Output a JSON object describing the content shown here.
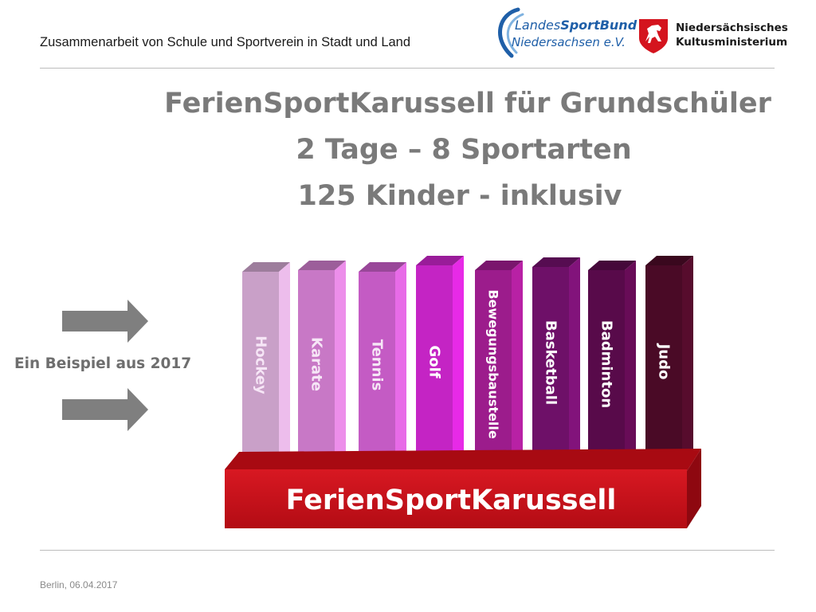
{
  "header": {
    "text": "Zusammenarbeit von Schule und Sportverein in Stadt und Land",
    "lsb_logo": {
      "word1": "Landes",
      "word2": "SportBund",
      "line2": "Niedersachsen e.V."
    },
    "ministry_logo": {
      "line1": "Niedersächsisches",
      "line2": "Kultusministerium"
    }
  },
  "title": {
    "line1": "FerienSportKarussell für Grundschüler",
    "line2": "2 Tage – 8 Sportarten",
    "line3": "125 Kinder - inklusiv"
  },
  "side_label": "Ein Beispiel aus 2017",
  "graphic": {
    "base_label": "FerienSportKarussell",
    "sports": [
      {
        "name": "Hockey",
        "color": "#c9a0c8"
      },
      {
        "name": "Karate",
        "color": "#c878c6"
      },
      {
        "name": "Tennis",
        "color": "#c45bc4"
      },
      {
        "name": "Golf",
        "color": "#c424c4"
      },
      {
        "name": "Bewegungsbaustelle",
        "color": "#9c1c8c"
      },
      {
        "name": "Basketball",
        "color": "#6e1068"
      },
      {
        "name": "Badminton",
        "color": "#580a4a"
      },
      {
        "name": "Judo",
        "color": "#4a0a26"
      }
    ],
    "base_color": "#c8101a"
  },
  "footer": {
    "date": "Berlin, 06.04.2017"
  }
}
